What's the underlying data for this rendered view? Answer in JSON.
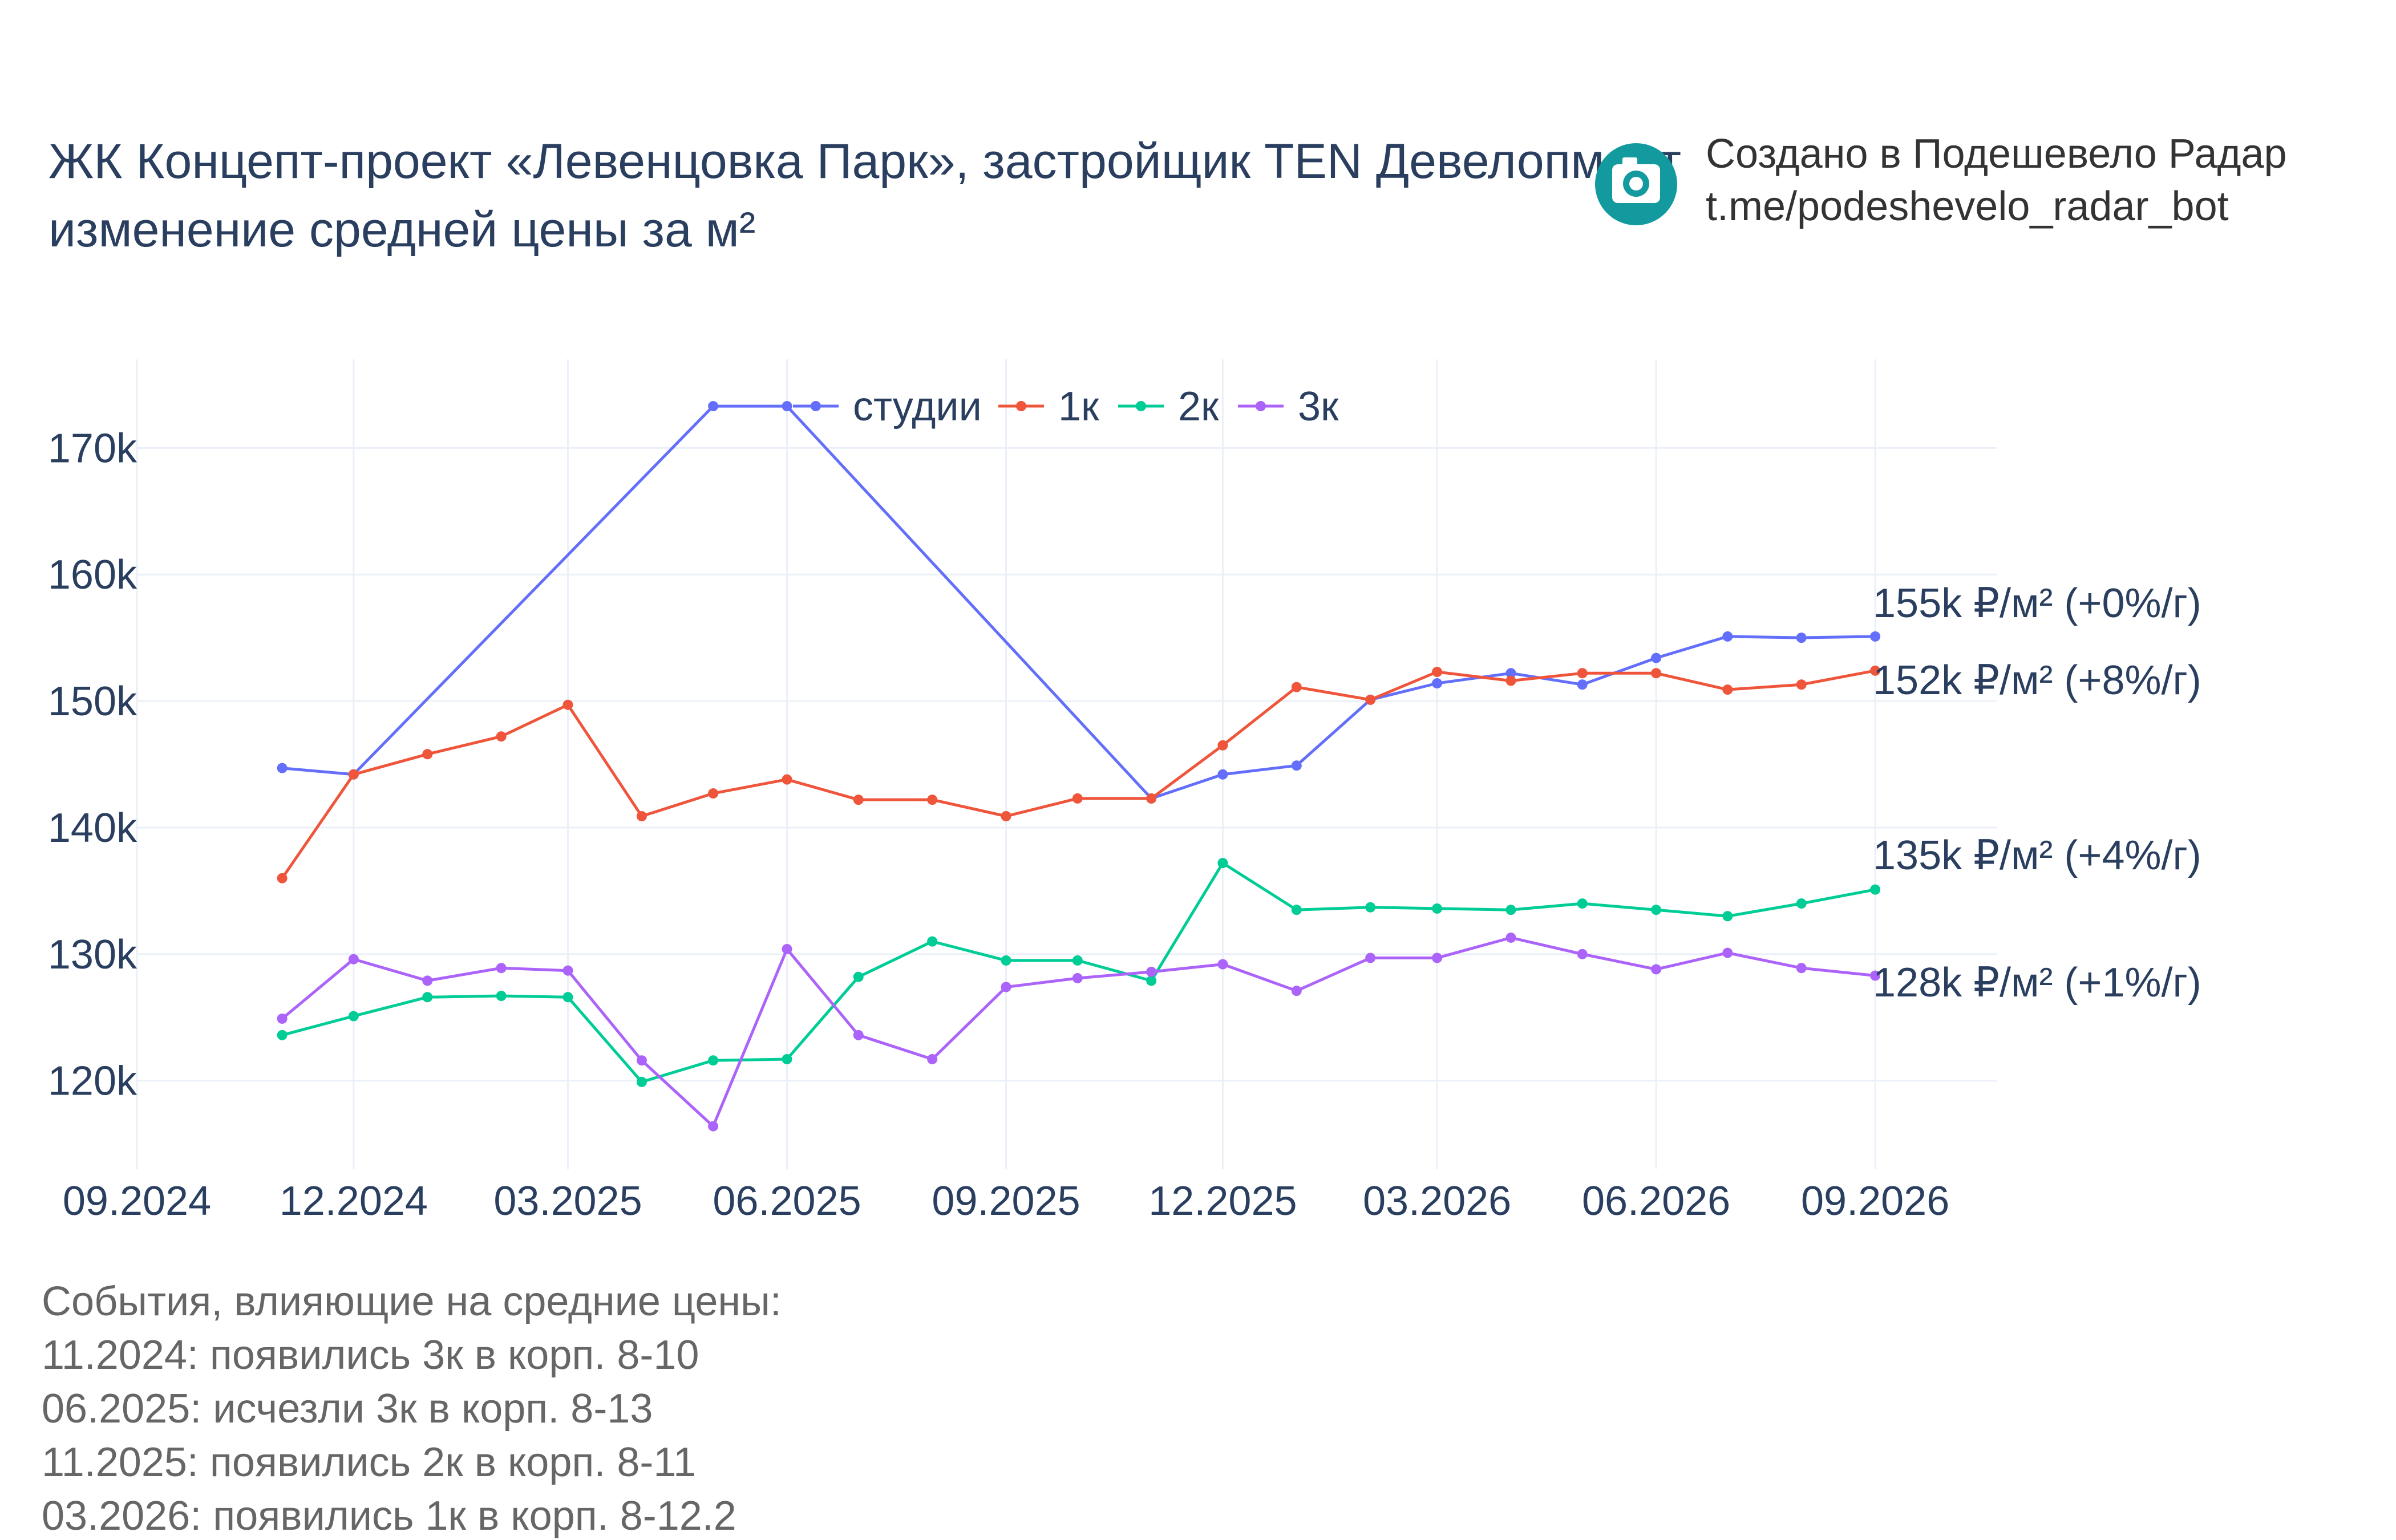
{
  "title": {
    "line1": "ЖК Концепт-проект «Левенцовка Парк», застройщик TEN Девелопмент",
    "line2": "изменение средней цены за м²"
  },
  "branding": {
    "icon": "camera-icon",
    "color": "#139a9e",
    "line1": "Создано в Подешевело Радар",
    "line2": "t.me/podeshevelo_radar_bot"
  },
  "events": {
    "heading": "События, влияющие на средние цены:",
    "items": [
      "11.2024: появились 3к в корп. 8-10",
      "06.2025: исчезли 3к в корп. 8-13",
      "11.2025: появились 2к в корп. 8-11",
      "03.2026: появились 1к в корп. 8-12.2"
    ]
  },
  "chart_data": {
    "type": "line",
    "x_label": "",
    "y_label": "",
    "y_range": [
      113000,
      177000
    ],
    "x_range": [
      "2024-09-01",
      "2026-10-22"
    ],
    "x_ticks": [
      {
        "date": "2024-09-01",
        "label": "09.2024"
      },
      {
        "date": "2024-12-01",
        "label": "12.2024"
      },
      {
        "date": "2025-03-01",
        "label": "03.2025"
      },
      {
        "date": "2025-06-01",
        "label": "06.2025"
      },
      {
        "date": "2025-09-01",
        "label": "09.2025"
      },
      {
        "date": "2025-12-01",
        "label": "12.2025"
      },
      {
        "date": "2026-03-01",
        "label": "03.2026"
      },
      {
        "date": "2026-06-01",
        "label": "06.2026"
      },
      {
        "date": "2026-09-01",
        "label": "09.2026"
      }
    ],
    "y_ticks": [
      {
        "value": 120000,
        "label": "120k"
      },
      {
        "value": 130000,
        "label": "130k"
      },
      {
        "value": 140000,
        "label": "140k"
      },
      {
        "value": 150000,
        "label": "150k"
      },
      {
        "value": 160000,
        "label": "160k"
      },
      {
        "value": 170000,
        "label": "170k"
      }
    ],
    "grid": true,
    "legend_position": "top-center",
    "series": [
      {
        "name": "студии",
        "color": "#636efa",
        "x": [
          "2024-11-01",
          "2024-12-01",
          "2025-05-01",
          "2025-06-01",
          "2025-11-01",
          "2025-12-01",
          "2026-01-01",
          "2026-02-01",
          "2026-03-01",
          "2026-04-01",
          "2026-05-01",
          "2026-06-01",
          "2026-07-01",
          "2026-08-01",
          "2026-09-01"
        ],
        "y": [
          144700,
          144200,
          173300,
          173300,
          142300,
          144200,
          144900,
          150100,
          151400,
          152200,
          151300,
          153400,
          155100,
          155000,
          155100
        ],
        "end_label": "155k ₽/м² (+0%/г)"
      },
      {
        "name": "1к",
        "color": "#ef553b",
        "x": [
          "2024-11-01",
          "2024-12-01",
          "2025-01-01",
          "2025-02-01",
          "2025-03-01",
          "2025-04-01",
          "2025-05-01",
          "2025-06-01",
          "2025-07-01",
          "2025-08-01",
          "2025-09-01",
          "2025-10-01",
          "2025-11-01",
          "2025-12-01",
          "2026-01-01",
          "2026-02-01",
          "2026-03-01",
          "2026-04-01",
          "2026-05-01",
          "2026-06-01",
          "2026-07-01",
          "2026-08-01",
          "2026-09-01"
        ],
        "y": [
          136000,
          144200,
          145800,
          147200,
          149700,
          140900,
          142700,
          143800,
          142200,
          142200,
          140900,
          142300,
          142300,
          146500,
          151100,
          150100,
          152300,
          151600,
          152200,
          152200,
          150900,
          151300,
          152400
        ],
        "end_label": "152k ₽/м² (+8%/г)"
      },
      {
        "name": "2к",
        "color": "#00cc96",
        "x": [
          "2024-11-01",
          "2024-12-01",
          "2025-01-01",
          "2025-02-01",
          "2025-03-01",
          "2025-04-01",
          "2025-05-01",
          "2025-06-01",
          "2025-07-01",
          "2025-08-01",
          "2025-09-01",
          "2025-10-01",
          "2025-11-01",
          "2025-12-01",
          "2026-01-01",
          "2026-02-01",
          "2026-03-01",
          "2026-04-01",
          "2026-05-01",
          "2026-06-01",
          "2026-07-01",
          "2026-08-01",
          "2026-09-01"
        ],
        "y": [
          123600,
          125100,
          126600,
          126700,
          126600,
          119900,
          121600,
          121700,
          128200,
          131000,
          129500,
          129500,
          127900,
          137200,
          133500,
          133700,
          133600,
          133500,
          134000,
          133500,
          133000,
          134000,
          135100
        ],
        "end_label": "135k ₽/м² (+4%/г)"
      },
      {
        "name": "3к",
        "color": "#ab63fa",
        "x": [
          "2024-11-01",
          "2024-12-01",
          "2025-01-01",
          "2025-02-01",
          "2025-03-01",
          "2025-04-01",
          "2025-05-01",
          "2025-06-01",
          "2025-07-01",
          "2025-08-01",
          "2025-09-01",
          "2025-10-01",
          "2025-11-01",
          "2025-12-01",
          "2026-01-01",
          "2026-02-01",
          "2026-03-01",
          "2026-04-01",
          "2026-05-01",
          "2026-06-01",
          "2026-07-01",
          "2026-08-01",
          "2026-09-01"
        ],
        "y": [
          124900,
          129600,
          127900,
          128900,
          128700,
          121600,
          116400,
          130400,
          123600,
          121700,
          127400,
          128100,
          128600,
          129200,
          127100,
          129700,
          129700,
          131300,
          130000,
          128800,
          130100,
          128900,
          128300
        ],
        "end_label": "128k ₽/м² (+1%/г)"
      }
    ]
  }
}
